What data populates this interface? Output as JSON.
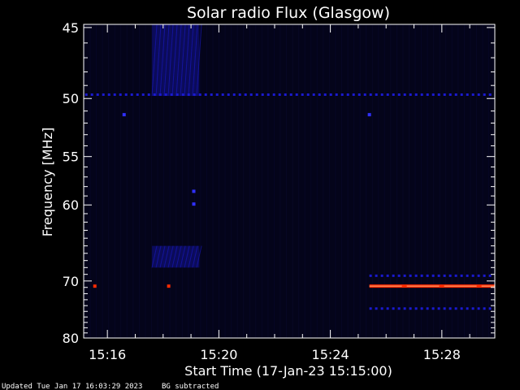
{
  "chart_data": {
    "type": "heatmap",
    "title": "Solar radio Flux (Glasgow)",
    "xlabel": "Start Time (17-Jan-23 15:15:00)",
    "ylabel": "Frequency [MHz]",
    "x_ticks": [
      "15:16",
      "15:20",
      "15:24",
      "15:28"
    ],
    "x_tick_minutes": [
      1,
      5,
      9,
      13
    ],
    "x_range_minutes": [
      0.15,
      14.9
    ],
    "y_ticks": [
      45,
      50,
      55,
      60,
      70,
      80
    ],
    "y_scale": "reciprocal",
    "y_range_mhz": [
      44.8,
      80
    ],
    "colors": {
      "background": "#000000",
      "plot_background": "#04041a",
      "axis": "#ffffff",
      "low": "#1a1ad0",
      "mid": "#3030ff",
      "high": "#ff2a00",
      "peak": "#ffb080"
    },
    "features": {
      "constant_lines": [
        {
          "freq_mhz": 49.7,
          "x_start_min": 0.2,
          "x_end_min": 14.9,
          "dashed": true,
          "level": "low"
        },
        {
          "freq_mhz": 69.2,
          "x_start_min": 10.4,
          "x_end_min": 14.9,
          "dashed": true,
          "level": "low"
        },
        {
          "freq_mhz": 70.8,
          "x_start_min": 10.4,
          "x_end_min": 14.9,
          "dashed": false,
          "level": "high"
        },
        {
          "freq_mhz": 74.5,
          "x_start_min": 10.4,
          "x_end_min": 14.9,
          "dashed": true,
          "level": "low"
        }
      ],
      "bursts": [
        {
          "x_start_min": 2.6,
          "x_end_min": 4.3,
          "freq_min_mhz": 44.8,
          "freq_max_mhz": 49.8,
          "level": "low"
        },
        {
          "x_start_min": 2.6,
          "x_end_min": 4.3,
          "freq_min_mhz": 65.0,
          "freq_max_mhz": 68.0,
          "level": "low"
        }
      ],
      "spots": [
        {
          "x_min": 0.55,
          "freq_mhz": 70.8,
          "level": "high"
        },
        {
          "x_min": 3.2,
          "freq_mhz": 70.8,
          "level": "high"
        },
        {
          "x_min": 1.6,
          "freq_mhz": 51.3,
          "level": "mid"
        },
        {
          "x_min": 10.4,
          "freq_mhz": 51.3,
          "level": "mid"
        },
        {
          "x_min": 4.1,
          "freq_mhz": 58.5,
          "level": "mid"
        },
        {
          "x_min": 4.1,
          "freq_mhz": 59.9,
          "level": "mid"
        }
      ]
    }
  },
  "footer": {
    "updated": "Updated Tue Jan 17 16:03:29 2023",
    "bg_note": "BG subtracted"
  }
}
